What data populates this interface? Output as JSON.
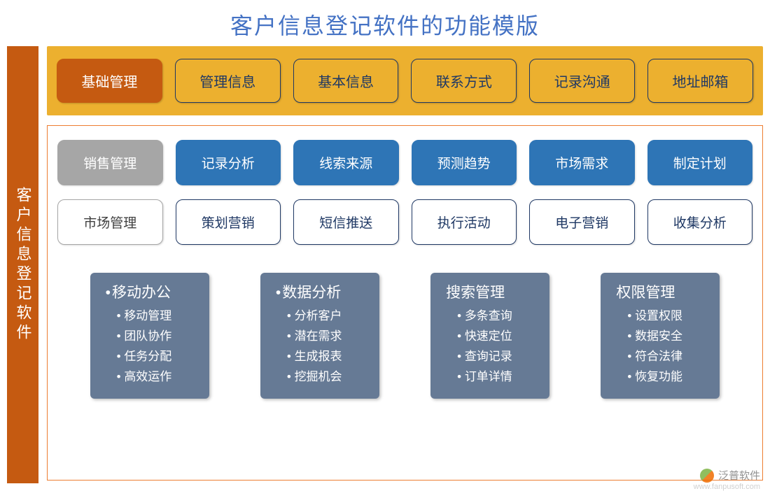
{
  "title": "客户信息登记软件的功能模版",
  "sidebar_label": "客户信息登记软件",
  "colors": {
    "title": "#4472c4",
    "sidebar_bg": "#c55a11",
    "topbar_bg": "#ecb02f",
    "active_tab_bg": "#c55a11",
    "tab_border": "#1f3864",
    "content_border": "#ed7d31",
    "gray": "#a6a6a6",
    "blue": "#2e75b6",
    "card_bg": "#667a95"
  },
  "top_tabs": [
    {
      "label": "基础管理",
      "active": true
    },
    {
      "label": "管理信息",
      "active": false
    },
    {
      "label": "基本信息",
      "active": false
    },
    {
      "label": "联系方式",
      "active": false
    },
    {
      "label": "记录沟通",
      "active": false
    },
    {
      "label": "地址邮箱",
      "active": false
    }
  ],
  "row1": {
    "head": "销售管理",
    "items": [
      "记录分析",
      "线索来源",
      "预测趋势",
      "市场需求",
      "制定计划"
    ]
  },
  "row2": {
    "head": "市场管理",
    "items": [
      "策划营销",
      "短信推送",
      "执行活动",
      "电子营销",
      "收集分析"
    ]
  },
  "cards": [
    {
      "title": "移动办公",
      "bullet_title": true,
      "items": [
        "移动管理",
        "团队协作",
        "任务分配",
        "高效运作"
      ]
    },
    {
      "title": "数据分析",
      "bullet_title": true,
      "items": [
        "分析客户",
        "潜在需求",
        "生成报表",
        "挖掘机会"
      ]
    },
    {
      "title": "搜索管理",
      "bullet_title": false,
      "items": [
        "多条查询",
        "快速定位",
        "查询记录",
        "订单详情"
      ]
    },
    {
      "title": "权限管理",
      "bullet_title": false,
      "items": [
        "设置权限",
        "数据安全",
        "符合法律",
        "恢复功能"
      ]
    }
  ],
  "watermark": {
    "text": "泛普软件",
    "url": "www.fanpusoft.com"
  }
}
